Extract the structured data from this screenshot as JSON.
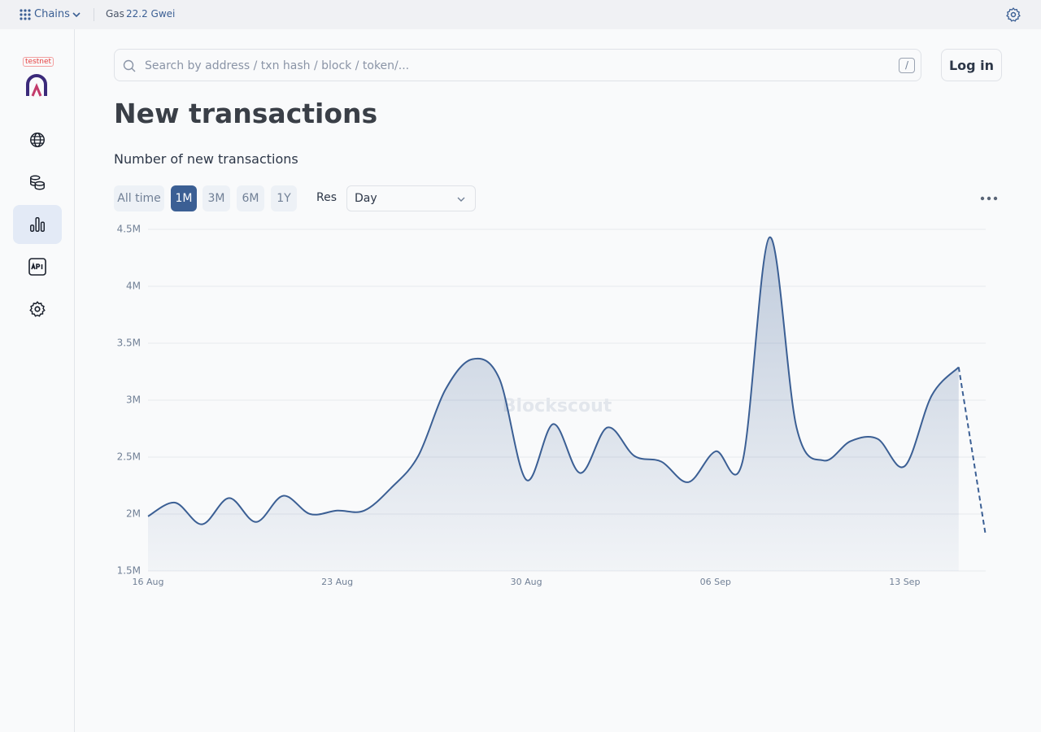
{
  "topbar": {
    "chains": "Chains",
    "gas_label": "Gas",
    "gas_value": "22.2 Gwei"
  },
  "sidebar": {
    "badge": "testnet"
  },
  "search": {
    "placeholder": "Search by address / txn hash / block / token/...",
    "shortcut": "/"
  },
  "login": "Log in",
  "page_title": "New transactions",
  "controls": {
    "ranges": [
      "All time",
      "1M",
      "3M",
      "6M",
      "1Y"
    ],
    "active_range": 1,
    "res_label": "Res",
    "res_value": "Day"
  },
  "chart_data": {
    "type": "line",
    "title": "Number of new transactions",
    "watermark": "Blockscout",
    "color": "#3b5f94",
    "fill": true,
    "dashed_last_segment": true,
    "grid": true,
    "categories": [
      "16 Aug",
      null,
      null,
      null,
      null,
      null,
      null,
      "23 Aug",
      null,
      null,
      null,
      null,
      null,
      null,
      "30 Aug",
      null,
      null,
      null,
      null,
      null,
      null,
      "06 Sep",
      null,
      null,
      null,
      null,
      null,
      null,
      "13 Sep",
      null,
      null,
      null
    ],
    "values": [
      1980000,
      2100000,
      1910000,
      2140000,
      1930000,
      2160000,
      2000000,
      2030000,
      2030000,
      2230000,
      2510000,
      3090000,
      3360000,
      3190000,
      2300000,
      2790000,
      2360000,
      2760000,
      2510000,
      2460000,
      2280000,
      2550000,
      2460000,
      4430000,
      2760000,
      2470000,
      2640000,
      2660000,
      2420000,
      3040000,
      3290000,
      1810000
    ],
    "ylim": [
      1500000,
      4500000
    ],
    "yticks": [
      {
        "value": 1500000,
        "label": "1.5M"
      },
      {
        "value": 2000000,
        "label": "2M"
      },
      {
        "value": 2500000,
        "label": "2.5M"
      },
      {
        "value": 3000000,
        "label": "3M"
      },
      {
        "value": 3500000,
        "label": "3.5M"
      },
      {
        "value": 4000000,
        "label": "4M"
      },
      {
        "value": 4500000,
        "label": "4.5M"
      }
    ]
  }
}
